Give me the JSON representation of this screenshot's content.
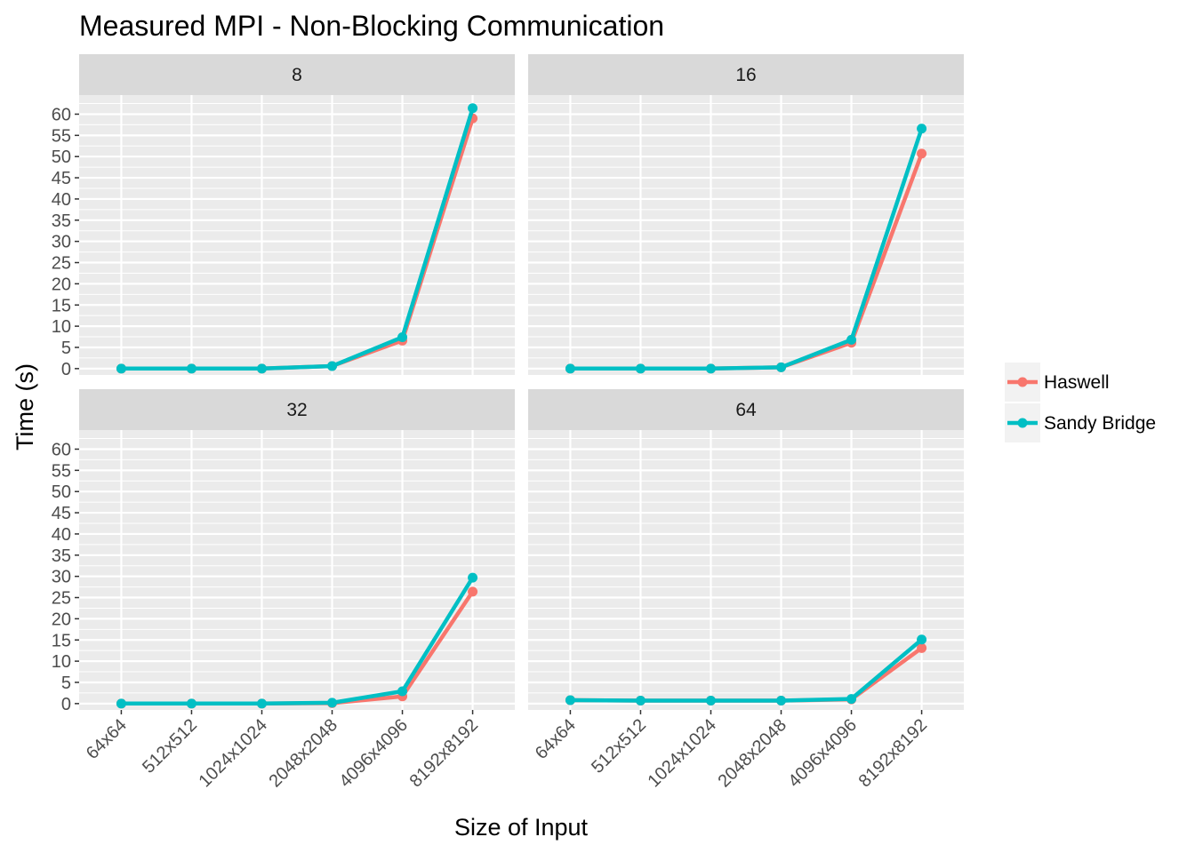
{
  "chart_data": {
    "type": "line",
    "title": "Measured MPI - Non-Blocking Communication",
    "xlabel": "Size of Input",
    "ylabel": "Time (s)",
    "categories": [
      "64x64",
      "512x512",
      "1024x1024",
      "2048x2048",
      "4096x4096",
      "8192x8192"
    ],
    "y_ticks": [
      "0",
      "5",
      "10",
      "15",
      "20",
      "25",
      "30",
      "35",
      "40",
      "45",
      "50",
      "55",
      "60"
    ],
    "ylim": [
      -1.5,
      64.5
    ],
    "grid": true,
    "legend_position": "right",
    "colors": {
      "Haswell": "#F8766D",
      "Sandy Bridge": "#00BFC4"
    },
    "legend": [
      "Haswell",
      "Sandy Bridge"
    ],
    "panels": [
      {
        "label": "8",
        "series": [
          {
            "name": "Haswell",
            "values": [
              0,
              0,
              0,
              0.6,
              6.6,
              59.0
            ]
          },
          {
            "name": "Sandy Bridge",
            "values": [
              0,
              0,
              0,
              0.6,
              7.4,
              61.4
            ]
          }
        ]
      },
      {
        "label": "16",
        "series": [
          {
            "name": "Haswell",
            "values": [
              0,
              0,
              0,
              0.3,
              6.1,
              50.7
            ]
          },
          {
            "name": "Sandy Bridge",
            "values": [
              0,
              0,
              0,
              0.3,
              6.8,
              56.6
            ]
          }
        ]
      },
      {
        "label": "32",
        "series": [
          {
            "name": "Haswell",
            "values": [
              0,
              0,
              0,
              0.1,
              1.7,
              26.4
            ]
          },
          {
            "name": "Sandy Bridge",
            "values": [
              0,
              0,
              0,
              0.2,
              2.9,
              29.7
            ]
          }
        ]
      },
      {
        "label": "64",
        "series": [
          {
            "name": "Haswell",
            "values": [
              0.8,
              0.7,
              0.7,
              0.7,
              1.0,
              13.1
            ]
          },
          {
            "name": "Sandy Bridge",
            "values": [
              0.8,
              0.7,
              0.7,
              0.7,
              1.1,
              15.1
            ]
          }
        ]
      }
    ]
  }
}
